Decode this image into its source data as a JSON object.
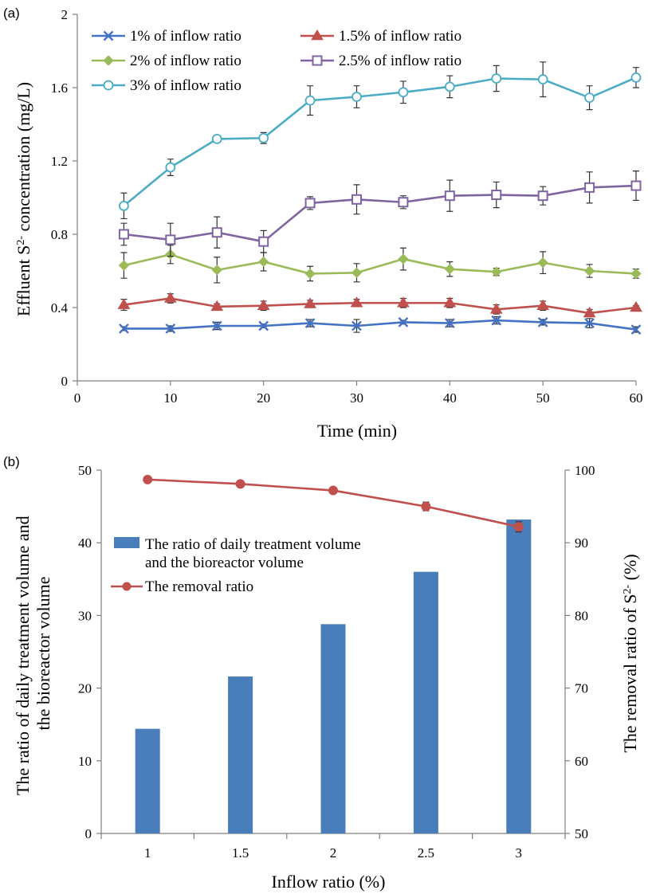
{
  "chart_data": [
    {
      "type": "line",
      "panel_label": "(a)",
      "xlabel": "Time (min)",
      "ylabel_parts": [
        "Effluent S",
        "2-",
        " concentration (mg/L)"
      ],
      "xlim": [
        0,
        60
      ],
      "ylim": [
        0,
        2
      ],
      "x_ticks": [
        0,
        10,
        20,
        30,
        40,
        50,
        60
      ],
      "y_ticks": [
        "0",
        "0.4",
        "0.8",
        "1.2",
        "1.6",
        "2"
      ],
      "y_tick_values": [
        0,
        0.4,
        0.8,
        1.2,
        1.6,
        2
      ],
      "legend_position": "top-left",
      "grid": false,
      "x": [
        5,
        10,
        15,
        20,
        25,
        30,
        35,
        40,
        45,
        50,
        55,
        60
      ],
      "series": [
        {
          "name": "1% of inflow ratio",
          "color": "#4472c4",
          "marker": "x",
          "values": [
            0.285,
            0.285,
            0.3,
            0.3,
            0.315,
            0.3,
            0.32,
            0.315,
            0.33,
            0.32,
            0.315,
            0.28
          ],
          "errors": [
            0.01,
            0.015,
            0.02,
            0.01,
            0.02,
            0.035,
            0.01,
            0.02,
            0.02,
            0.015,
            0.025,
            0.015
          ]
        },
        {
          "name": "1.5% of inflow ratio",
          "color": "#c0504d",
          "marker": "triangle",
          "values": [
            0.415,
            0.45,
            0.405,
            0.41,
            0.42,
            0.425,
            0.425,
            0.425,
            0.39,
            0.41,
            0.37,
            0.4
          ],
          "errors": [
            0.03,
            0.025,
            0.015,
            0.025,
            0.02,
            0.02,
            0.025,
            0.025,
            0.025,
            0.025,
            0.02,
            0.01
          ]
        },
        {
          "name": "2% of inflow ratio",
          "color": "#9bbb59",
          "marker": "diamond",
          "values": [
            0.63,
            0.69,
            0.605,
            0.65,
            0.585,
            0.59,
            0.665,
            0.61,
            0.595,
            0.645,
            0.6,
            0.585
          ],
          "errors": [
            0.07,
            0.05,
            0.07,
            0.05,
            0.04,
            0.05,
            0.06,
            0.04,
            0.02,
            0.06,
            0.035,
            0.025
          ]
        },
        {
          "name": "2.5% of inflow ratio",
          "color": "#8064a2",
          "marker": "square",
          "values": [
            0.8,
            0.77,
            0.81,
            0.76,
            0.97,
            0.99,
            0.975,
            1.01,
            1.015,
            1.01,
            1.055,
            1.065
          ],
          "errors": [
            0.06,
            0.09,
            0.085,
            0.06,
            0.035,
            0.08,
            0.035,
            0.085,
            0.07,
            0.05,
            0.085,
            0.08
          ]
        },
        {
          "name": "3% of inflow ratio",
          "color": "#4bacc6",
          "marker": "circle",
          "values": [
            0.955,
            1.165,
            1.32,
            1.325,
            1.53,
            1.55,
            1.575,
            1.605,
            1.65,
            1.645,
            1.545,
            1.655
          ],
          "errors": [
            0.07,
            0.045,
            0.01,
            0.03,
            0.08,
            0.06,
            0.06,
            0.06,
            0.07,
            0.095,
            0.065,
            0.055
          ]
        }
      ]
    },
    {
      "type": "bar",
      "panel_label": "(b)",
      "xlabel": "Inflow ratio (%)",
      "ylabel_left_lines": [
        "The ratio of daily treatment volume and",
        "the bioreactor volume"
      ],
      "ylabel_right_parts": [
        "The removal ratio of S",
        "2-",
        " (%)"
      ],
      "categories": [
        "1",
        "1.5",
        "2",
        "2.5",
        "3"
      ],
      "ylim_left": [
        0,
        50
      ],
      "ylim_right": [
        50,
        100
      ],
      "y_left_ticks": [
        "0",
        "10",
        "20",
        "30",
        "40",
        "50"
      ],
      "y_left_tick_values": [
        0,
        10,
        20,
        30,
        40,
        50
      ],
      "y_right_ticks": [
        "50",
        "60",
        "70",
        "80",
        "90",
        "100"
      ],
      "y_right_tick_values": [
        50,
        60,
        70,
        80,
        90,
        100
      ],
      "legend_position": "upper-left",
      "grid": false,
      "series": [
        {
          "name_lines": [
            "The ratio of daily treatment volume",
            "and the bioreactor volume"
          ],
          "kind": "bar",
          "axis": "left",
          "color": "#4a7ebb",
          "values": [
            14.4,
            21.6,
            28.8,
            36.0,
            43.2
          ]
        },
        {
          "name_lines": [
            "The removal ratio"
          ],
          "kind": "line",
          "axis": "right",
          "color": "#c0504d",
          "values": [
            98.7,
            98.1,
            97.2,
            95.0,
            92.2
          ],
          "errors": [
            0.2,
            0.2,
            0.3,
            0.6,
            0.7
          ]
        }
      ]
    }
  ]
}
